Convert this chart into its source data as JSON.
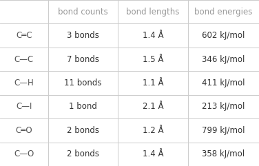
{
  "col_headers": [
    "bond counts",
    "bond lengths",
    "bond energies"
  ],
  "row_labels": [
    "C═C",
    "C—C",
    "C—H",
    "C—I",
    "C═O",
    "C—O"
  ],
  "bond_counts": [
    "3 bonds",
    "7 bonds",
    "11 bonds",
    "1 bond",
    "2 bonds",
    "2 bonds"
  ],
  "bond_lengths": [
    "1.4 Å",
    "1.5 Å",
    "1.1 Å",
    "2.1 Å",
    "1.2 Å",
    "1.4 Å"
  ],
  "bond_energies": [
    "602 kJ/mol",
    "346 kJ/mol",
    "411 kJ/mol",
    "213 kJ/mol",
    "799 kJ/mol",
    "358 kJ/mol"
  ],
  "bg_color": "#ffffff",
  "header_text_color": "#999999",
  "row_label_text_color": "#555555",
  "cell_text_color": "#333333",
  "line_color": "#cccccc",
  "header_fontsize": 8.5,
  "row_label_fontsize": 8.5,
  "cell_fontsize": 8.5,
  "n_rows": 6,
  "fig_width": 3.76,
  "fig_height": 2.41,
  "dpi": 100
}
